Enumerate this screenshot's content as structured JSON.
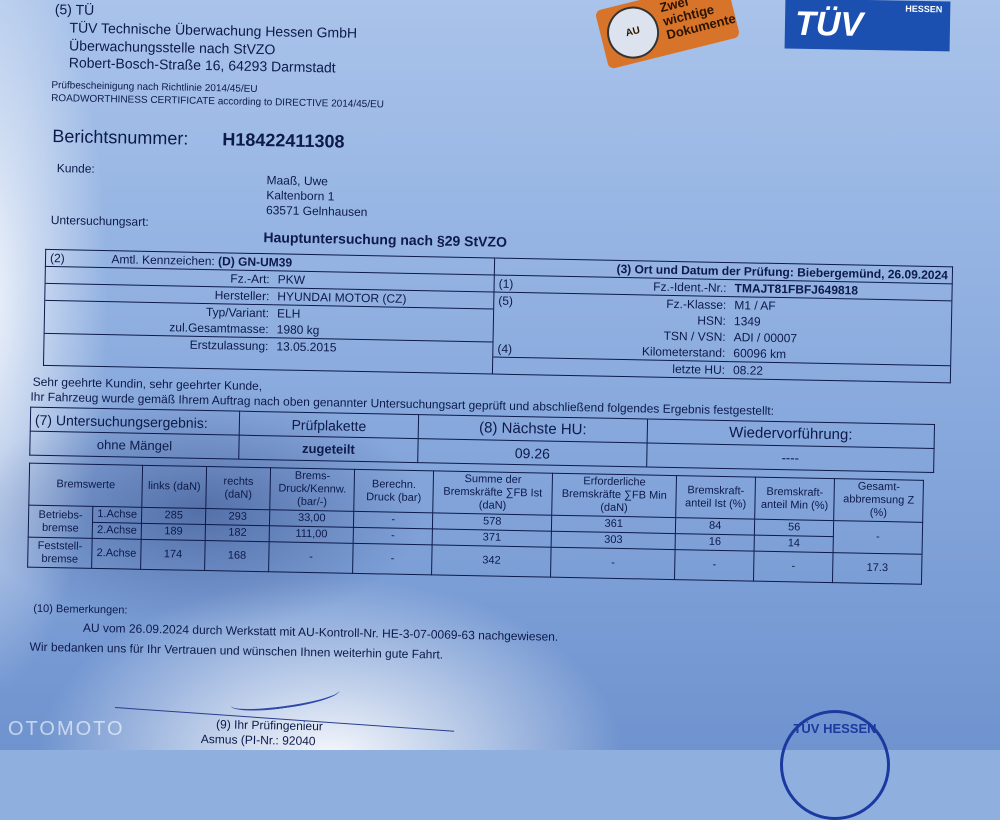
{
  "header": {
    "prefix": "(5) TÜ",
    "company_line1": "TÜV Technische Überwachung Hessen GmbH",
    "company_line2": "Überwachungsstelle nach StVZO",
    "address": "Robert-Bosch-Straße 16, 64293 Darmstadt",
    "cert_de": "Prüfbescheinigung nach Richtlinie 2014/45/EU",
    "cert_en": "ROADWORTHINESS CERTIFICATE according to DIRECTIVE 2014/45/EU",
    "logo_text": "TÜV",
    "logo_sub": "HESSEN",
    "sticker_text": "Zwei wichtige Dokumente",
    "sticker_seal": "AU"
  },
  "report": {
    "number_label": "Berichtsnummer:",
    "number": "H18422411308",
    "customer_label": "Kunde:",
    "customer_name": "Maaß, Uwe",
    "customer_street": "Kaltenborn 1",
    "customer_city": "63571 Gelnhausen",
    "exam_type_label": "Untersuchungsart:",
    "exam_type": "Hauptuntersuchung nach §29 StVZO"
  },
  "vehicle": {
    "left": [
      {
        "num": "(2)",
        "label": "Amtl. Kennzeichen:",
        "value": "(D) GN-UM39",
        "bold": true
      },
      {
        "num": "",
        "label": "Fz.-Art:",
        "value": "PKW"
      },
      {
        "num": "",
        "label": "Hersteller:",
        "value": "HYUNDAI MOTOR (CZ)"
      },
      {
        "num": "",
        "label": "Typ/Variant:",
        "value": "ELH"
      },
      {
        "num": "",
        "label": "zul.Gesamtmasse:",
        "value": "1980 kg"
      },
      {
        "num": "",
        "label": "Erstzulassung:",
        "value": "13.05.2015"
      }
    ],
    "place_date": "(3) Ort und Datum der Prüfung: Biebergemünd, 26.09.2024",
    "right": [
      {
        "num": "(1)",
        "label": "Fz.-Ident.-Nr.:",
        "value": "TMAJT81FBFJ649818",
        "bold": true
      },
      {
        "num": "(5)",
        "label": "Fz.-Klasse:",
        "value": "M1 / AF"
      },
      {
        "num": "",
        "label": "HSN:",
        "value": "1349"
      },
      {
        "num": "",
        "label": "TSN / VSN:",
        "value": "ADI / 00007"
      },
      {
        "num": "(4)",
        "label": "Kilometerstand:",
        "value": "60096 km"
      },
      {
        "num": "",
        "label": "letzte HU:",
        "value": "08.22"
      }
    ],
    "greeting": "Sehr geehrte Kundin, sehr geehrter Kunde,",
    "intro": "Ihr Fahrzeug wurde gemäß Ihrem Auftrag nach oben genannter Untersuchungsart geprüft und abschließend folgendes Ergebnis festgestellt:"
  },
  "result": {
    "result_label": "(7) Untersuchungsergebnis:",
    "result_value": "ohne Mängel",
    "plakette_label": "Prüfplakette",
    "plakette_value": "zugeteilt",
    "next_hu_label": "(8) Nächste HU:",
    "next_hu_value": "09.26",
    "revisit_label": "Wiedervorführung:",
    "revisit_value": "----"
  },
  "brakes": {
    "headers": [
      "Bremswerte",
      "links (daN)",
      "rechts (daN)",
      "Brems-Druck/Kennw. (bar/-)",
      "Berechn. Druck (bar)",
      "Summe der Bremskräfte ∑FB Ist (daN)",
      "Erforderliche Bremskräfte ∑FB Min (daN)",
      "Bremskraft-anteil Ist (%)",
      "Bremskraft-anteil Min (%)",
      "Gesamt-abbremsung Z (%)"
    ],
    "service_label": "Betriebs-bremse",
    "parking_label": "Feststell-bremse",
    "rows": [
      {
        "axle": "1.Achse",
        "links": "285",
        "rechts": "293",
        "druck": "33,00",
        "berechn": "-",
        "ist": "578",
        "min": "361",
        "anteil_ist": "84",
        "anteil_min": "56"
      },
      {
        "axle": "2.Achse",
        "links": "189",
        "rechts": "182",
        "druck": "111,00",
        "berechn": "-",
        "ist": "371",
        "min": "303",
        "anteil_ist": "16",
        "anteil_min": "14"
      },
      {
        "axle": "2.Achse",
        "links": "174",
        "rechts": "168",
        "druck": "-",
        "berechn": "-",
        "ist": "342",
        "min": "-",
        "anteil_ist": "-",
        "anteil_min": "-"
      }
    ],
    "z_service": "-",
    "z_parking": "17.3"
  },
  "remarks": {
    "label": "(10) Bemerkungen:",
    "text": "AU vom 26.09.2024 durch Werkstatt mit AU-Kontroll-Nr. HE-3-07-0069-63 nachgewiesen.",
    "thanks": "Wir bedanken uns für Ihr Vertrauen und wünschen Ihnen weiterhin gute Fahrt."
  },
  "footer": {
    "engineer_label": "(9) Ihr Prüfingenieur",
    "engineer_name": "Asmus (PI-Nr.: 92040",
    "stamp_text": "TÜV HESSEN",
    "watermark": "OTOMOTO"
  }
}
